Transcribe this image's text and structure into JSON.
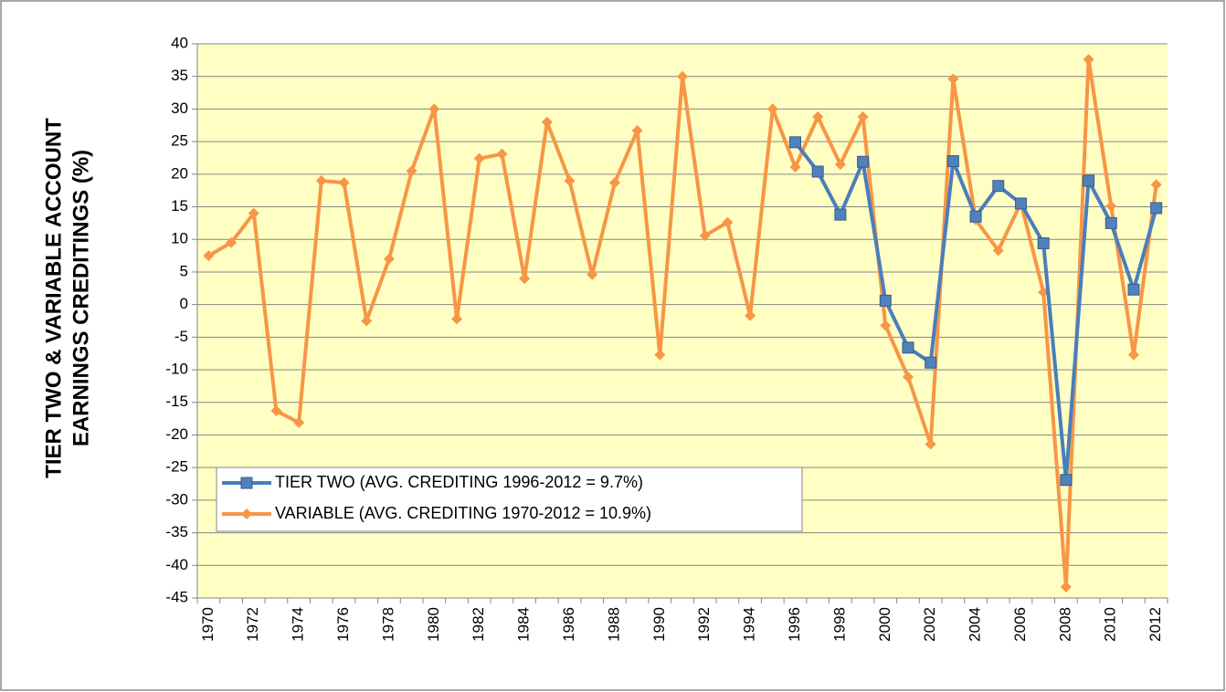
{
  "chart_data": {
    "type": "line",
    "y_label": [
      "TIER TWO & VARIABLE ACCOUNT",
      "EARNINGS CREDITINGS (%)"
    ],
    "categories": [
      "1970",
      null,
      "1972",
      null,
      "1974",
      null,
      "1976",
      null,
      "1978",
      null,
      "1980",
      null,
      "1982",
      null,
      "1984",
      null,
      "1986",
      null,
      "1988",
      null,
      "1990",
      null,
      "1992",
      null,
      "1994",
      null,
      "1996",
      null,
      "1998",
      null,
      "2000",
      null,
      "2002",
      null,
      "2004",
      null,
      "2006",
      null,
      "2008",
      null,
      "2010",
      null,
      "2012"
    ],
    "series": [
      {
        "name": "TIER TWO (AVG. CREDITING 1996-2012 = 9.7%)",
        "color": "#4a7ebb",
        "marker": "square",
        "values": [
          null,
          null,
          null,
          null,
          null,
          null,
          null,
          null,
          null,
          null,
          null,
          null,
          null,
          null,
          null,
          null,
          null,
          null,
          null,
          null,
          null,
          null,
          null,
          null,
          null,
          null,
          24.9,
          20.4,
          13.8,
          21.9,
          0.6,
          -6.6,
          -8.9,
          22,
          13.5,
          18.2,
          15.5,
          9.4,
          -26.9,
          19,
          12.5,
          2.3,
          14.8
        ]
      },
      {
        "name": "VARIABLE (AVG. CREDITING 1970-2012 = 10.9%)",
        "color": "#f79646",
        "marker": "diamond",
        "values": [
          7.5,
          9.5,
          14,
          -16.3,
          -18.1,
          19,
          18.7,
          -2.5,
          7,
          20.5,
          30,
          -2.2,
          22.4,
          23.1,
          4,
          28,
          19,
          4.6,
          18.7,
          26.7,
          -7.7,
          35,
          10.6,
          12.6,
          -1.7,
          30,
          21.1,
          28.8,
          21.5,
          28.8,
          -3.2,
          -11.1,
          -21.4,
          34.6,
          13,
          8.3,
          15.6,
          1.9,
          -43.3,
          37.6,
          15.1,
          -7.7,
          18.4
        ]
      }
    ],
    "ylim": [
      -45,
      40
    ],
    "yticks": [
      -45,
      -40,
      -35,
      -30,
      -25,
      -20,
      -15,
      -10,
      -5,
      0,
      5,
      10,
      15,
      20,
      25,
      30,
      35,
      40
    ],
    "grid": true,
    "legend": "lower-left",
    "plot_background": "#ffffc4"
  }
}
